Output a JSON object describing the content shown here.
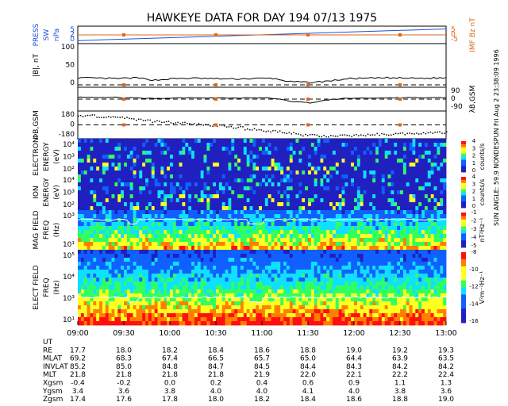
{
  "title": "HAWKEYE DATA FOR DAY 194 07/13 1975",
  "side_label": "SUN ANGLE: 59.9 NONDESPUN  Fri Aug  2 23:38:09 1996",
  "colors": {
    "blue": "#1f4fd8",
    "orange": "#e0661a",
    "panel_bg": "#ffffff"
  },
  "chart_data": [
    {
      "type": "line",
      "title": "PRESS SW nPa / IMF Bz nT",
      "left_label": [
        "PRESS",
        "SW"
      ],
      "left_unit": "nPa",
      "right_label": "IMF Bz nT",
      "left_ticks": [
        "5",
        "2",
        "0"
      ],
      "right_ticks": [
        "5",
        "0",
        "-5"
      ],
      "ylim": [
        0,
        6
      ],
      "series": [
        {
          "name": "PRESS SW",
          "color": "#1f4fd8",
          "x": [
            9.0,
            13.0
          ],
          "values": [
            0.3,
            5.8
          ]
        },
        {
          "name": "IMF Bz",
          "color": "#e0661a",
          "x": [
            9.0,
            13.0
          ],
          "values": [
            3.0,
            3.0
          ]
        }
      ],
      "markers_x": [
        9.5,
        10.5,
        11.5,
        12.5
      ]
    },
    {
      "type": "line",
      "title": "|B|, nT",
      "left_label": "|B|, nT",
      "left_ticks": [
        "100",
        "50",
        "0"
      ],
      "ylim": [
        0,
        100
      ],
      "series": [
        {
          "name": "|B|",
          "values": [
            18,
            17,
            16,
            18,
            12,
            16,
            17,
            16,
            15,
            16,
            17,
            8,
            6,
            10,
            16,
            17,
            18,
            17,
            17,
            18
          ]
        }
      ],
      "reference_line": 0
    },
    {
      "type": "line",
      "title": "λ B,GSM",
      "right_label": "λB,GSM",
      "right_ticks": [
        "90",
        "0",
        "-90"
      ],
      "ylim": [
        -90,
        90
      ],
      "series": [
        {
          "name": "λB,GSM",
          "values": [
            20,
            18,
            16,
            10,
            5,
            12,
            14,
            12,
            10,
            12,
            10,
            -20,
            -35,
            -5,
            8,
            10,
            12,
            14,
            12,
            14
          ]
        }
      ],
      "reference_line": 0
    },
    {
      "type": "scatter",
      "title": "Φ B,GSM",
      "left_label": "ΦB,GSM",
      "left_ticks": [
        "180",
        "0",
        "-180"
      ],
      "ylim": [
        -180,
        180
      ],
      "series": [
        {
          "name": "ΦB,GSM",
          "values": [
            150,
            140,
            120,
            90,
            60,
            40,
            20,
            0,
            -30,
            -60,
            -90,
            -120,
            -150,
            -170,
            -160,
            -150,
            -140,
            -130,
            -120,
            -110
          ]
        }
      ],
      "reference_line": 0
    },
    {
      "type": "heatmap",
      "title": "ELECTRON ENERGY (eV)",
      "left_label": [
        "ELECTRON",
        "ENERGY",
        "(eV)"
      ],
      "left_ticks": [
        "10⁴",
        "10³",
        "10²"
      ],
      "colorbar_label": "counts/s",
      "colorbar_ticks": [
        "4",
        "3",
        "2",
        "1",
        "0"
      ]
    },
    {
      "type": "heatmap",
      "title": "ION ENERGY (eV)",
      "left_label": [
        "ION",
        "ENERGY",
        "(eV)"
      ],
      "left_ticks": [
        "10⁴",
        "10³",
        "10²"
      ],
      "colorbar_label": "counts/s",
      "colorbar_ticks": [
        "4",
        "3",
        "2",
        "1",
        "0"
      ]
    },
    {
      "type": "heatmap",
      "title": "MAG FIELD FREQ (Hz)",
      "left_label": [
        "MAG FIELD",
        "FREQ",
        "(Hz)"
      ],
      "left_ticks": [
        "10³",
        "10¹"
      ],
      "colorbar_label": "nT²Hz⁻¹",
      "colorbar_ticks": [
        "-1",
        "-2",
        "-3",
        "-4",
        "-5"
      ]
    },
    {
      "type": "heatmap",
      "title": "ELECT FIELD FREQ (Hz)",
      "left_label": [
        "ELECT FIELD",
        "FREQ",
        "(Hz)"
      ],
      "left_ticks": [
        "10⁵",
        "10⁴",
        "10³",
        "10¹"
      ],
      "colorbar_label": "V²m⁻²Hz⁻¹",
      "colorbar_ticks": [
        "-8",
        "-10",
        "-12",
        "-14",
        "-16"
      ]
    }
  ],
  "time_axis": {
    "labels": [
      "09:00",
      "09:30",
      "10:00",
      "10:30",
      "11:00",
      "11:30",
      "12:00",
      "12:30",
      "13:00"
    ]
  },
  "ephemeris": [
    {
      "label": "UT",
      "values": [
        "09:00",
        "09:30",
        "10:00",
        "10:30",
        "11:00",
        "11:30",
        "12:00",
        "12:30",
        "13:00"
      ]
    },
    {
      "label": "RE",
      "values": [
        "17.7",
        "18.0",
        "18.2",
        "18.4",
        "18.6",
        "18.8",
        "19.0",
        "19.2",
        "19.3"
      ]
    },
    {
      "label": "MLAT",
      "values": [
        "69.2",
        "68.3",
        "67.4",
        "66.5",
        "65.7",
        "65.0",
        "64.4",
        "63.9",
        "63.5"
      ]
    },
    {
      "label": "INVLAT",
      "values": [
        "85.2",
        "85.0",
        "84.8",
        "84.7",
        "84.5",
        "84.4",
        "84.3",
        "84.2",
        "84.2"
      ]
    },
    {
      "label": "MLT",
      "values": [
        "21.8",
        "21.8",
        "21.8",
        "21.8",
        "21.9",
        "22.0",
        "22.1",
        "22.2",
        "22.4"
      ]
    },
    {
      "label": "Xgsm",
      "values": [
        "-0.4",
        "-0.2",
        "0.0",
        "0.2",
        "0.4",
        "0.6",
        "0.9",
        "1.1",
        "1.3"
      ]
    },
    {
      "label": "Ygsm",
      "values": [
        "3.4",
        "3.6",
        "3.8",
        "4.0",
        "4.0",
        "4.1",
        "4.0",
        "3.8",
        "3.6"
      ]
    },
    {
      "label": "Zgsm",
      "values": [
        "17.4",
        "17.6",
        "17.8",
        "18.0",
        "18.2",
        "18.4",
        "18.6",
        "18.8",
        "19.0"
      ]
    }
  ]
}
